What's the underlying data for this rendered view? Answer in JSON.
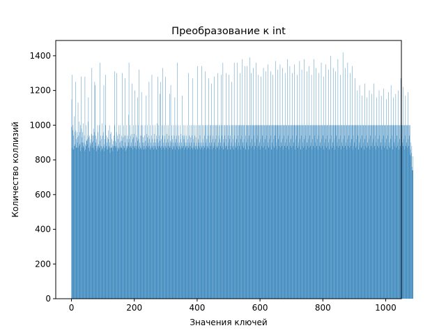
{
  "chart_data": {
    "type": "bar",
    "title": "Преобразование к int",
    "xlabel": "Значения ключей",
    "ylabel": "Количество коллизий",
    "xlim": [
      -50,
      1050
    ],
    "ylim": [
      0,
      1488
    ],
    "xticks": [
      0,
      200,
      400,
      600,
      800,
      1000
    ],
    "yticks": [
      0,
      200,
      400,
      600,
      800,
      1000,
      1200,
      1400
    ],
    "grid": false,
    "legend": "none",
    "bar_color": "#1f77b4",
    "bar_width": 1.0,
    "x_start": 0,
    "x_end": 999,
    "x_step": 1,
    "values": [
      990,
      1150,
      1290,
      870,
      970,
      1000,
      860,
      940,
      880,
      1050,
      960,
      880,
      890,
      1250,
      970,
      920,
      870,
      960,
      870,
      900,
      930,
      1130,
      870,
      940,
      880,
      1020,
      960,
      890,
      850,
      1000,
      900,
      1280,
      980,
      930,
      870,
      900,
      960,
      1010,
      880,
      870,
      900,
      940,
      850,
      1280,
      890,
      860,
      880,
      1000,
      910,
      910,
      920,
      890,
      940,
      1020,
      1160,
      930,
      870,
      940,
      850,
      900,
      880,
      920,
      890,
      870,
      950,
      1330,
      900,
      940,
      870,
      910,
      980,
      940,
      860,
      960,
      1250,
      880,
      1230,
      900,
      940,
      850,
      920,
      870,
      880,
      1000,
      860,
      960,
      880,
      890,
      870,
      1000,
      910,
      1360,
      880,
      940,
      850,
      880,
      920,
      1010,
      860,
      870,
      940,
      880,
      960,
      1230,
      890,
      850,
      920,
      870,
      1000,
      1290,
      880,
      940,
      860,
      900,
      880,
      930,
      860,
      920,
      970,
      880,
      870,
      1000,
      900,
      840,
      950,
      870,
      960,
      870,
      870,
      920,
      890,
      850,
      880,
      910,
      870,
      940,
      880,
      1000,
      1310,
      880,
      910,
      870,
      900,
      960,
      1300,
      880,
      940,
      850,
      870,
      920,
      1000,
      860,
      950,
      870,
      900,
      880,
      1000,
      910,
      870,
      940,
      870,
      910,
      1300,
      860,
      930,
      880,
      1000,
      880,
      940,
      870,
      1270,
      900,
      850,
      940,
      880,
      860,
      1000,
      920,
      870,
      940,
      880,
      900,
      1060,
      1360,
      880,
      920,
      1000,
      870,
      940,
      880,
      900,
      870,
      950,
      1240,
      880,
      920,
      860,
      1000,
      930,
      880,
      950,
      870,
      1200,
      900,
      880,
      1000,
      940,
      860,
      930,
      880,
      1160,
      910,
      1000,
      870,
      920,
      1320,
      860,
      900,
      880,
      940,
      870,
      1000,
      860,
      1190,
      940,
      870,
      900,
      1000,
      880,
      930,
      860,
      900,
      940,
      880,
      1000,
      870,
      910,
      860,
      1170,
      950,
      880,
      930,
      1000,
      870,
      900,
      880,
      940,
      1250,
      880,
      920,
      860,
      1000,
      900,
      870,
      940,
      880,
      1290,
      920,
      870,
      880,
      1000,
      900,
      860,
      950,
      880,
      920,
      1000,
      870,
      900,
      880,
      940,
      860,
      1010,
      920,
      880,
      1280,
      900,
      870,
      1000,
      940,
      880,
      910,
      1180,
      870,
      1250,
      880,
      920,
      860,
      1000,
      880,
      1330,
      940,
      870,
      900,
      880,
      1000,
      920,
      860,
      940,
      1280,
      880,
      900,
      870,
      1000,
      950,
      880,
      920,
      860,
      1000,
      900,
      880,
      940,
      870,
      1180,
      910,
      880,
      1230,
      900,
      870,
      940,
      1000,
      860,
      920,
      880,
      900,
      1000,
      870,
      940,
      880,
      1160,
      860,
      900,
      1000,
      920,
      880,
      940,
      870,
      1360,
      900,
      880,
      1000,
      860,
      940,
      880,
      900,
      870,
      1000,
      920,
      860,
      950,
      880,
      900,
      1170,
      870,
      940,
      880,
      1000,
      880,
      920,
      860,
      940,
      900,
      1000,
      880,
      870,
      940,
      880,
      900,
      1000,
      860,
      920,
      880,
      1300,
      870,
      940,
      900,
      1000,
      880,
      860,
      930,
      880,
      1000,
      900,
      870,
      940,
      1270,
      860,
      1000,
      920,
      880,
      900,
      870,
      940,
      1000,
      880,
      860,
      930,
      1000,
      900,
      880,
      870,
      1340,
      860,
      1000,
      920,
      880,
      900,
      870,
      1000,
      940,
      860,
      1000,
      880,
      900,
      870,
      1340,
      880,
      1000,
      920,
      860,
      900,
      1000,
      880,
      870,
      940,
      1000,
      1310,
      880,
      900,
      1000,
      860,
      920,
      880,
      1000,
      870,
      940,
      1000,
      1270,
      880,
      900,
      860,
      1000,
      940,
      880,
      1000,
      1240,
      900,
      860,
      1000,
      920,
      880,
      940,
      1000,
      870,
      1280,
      900,
      1000,
      880,
      920,
      860,
      1000,
      940,
      1000,
      880,
      870,
      1300,
      1000,
      900,
      880,
      940,
      1000,
      860,
      920,
      1000,
      880,
      900,
      1000,
      1290,
      870,
      940,
      1000,
      880,
      1360,
      920,
      860,
      1000,
      900,
      1000,
      940,
      880,
      870,
      1000,
      1300,
      920,
      1000,
      880,
      860,
      1000,
      940,
      900,
      1000,
      1290,
      880,
      920,
      1000,
      860,
      940,
      1000,
      880,
      900,
      1250,
      1000,
      870,
      1000,
      920,
      880,
      1000,
      860,
      1360,
      940,
      1000,
      880,
      900,
      1000,
      870,
      920,
      1000,
      1360,
      880,
      1000,
      940,
      860,
      1000,
      900,
      1000,
      880,
      1300,
      1000,
      920,
      860,
      1000,
      940,
      1000,
      880,
      1380,
      1000,
      900,
      870,
      1000,
      920,
      1000,
      880,
      1340,
      1000,
      940,
      860,
      1000,
      900,
      1000,
      1340,
      880,
      1000,
      920,
      1000,
      860,
      1000,
      940,
      1390,
      880,
      1000,
      900,
      1000,
      1300,
      870,
      1000,
      920,
      1000,
      880,
      1000,
      1330,
      940,
      1000,
      860,
      1000,
      900,
      1000,
      880,
      1360,
      1000,
      920,
      1000,
      870,
      1000,
      940,
      1000,
      1290,
      880,
      1000,
      900,
      1000,
      860,
      1000,
      920,
      1280,
      1000,
      880,
      1000,
      940,
      1000,
      870,
      1000,
      1330,
      900,
      1000,
      880,
      1000,
      920,
      1000,
      1310,
      860,
      1000,
      940,
      1000,
      880,
      1000,
      900,
      1350,
      1000,
      870,
      1000,
      920,
      1000,
      880,
      1000,
      1310,
      940,
      1000,
      860,
      1000,
      900,
      1000,
      1290,
      880,
      1000,
      920,
      1000,
      870,
      1000,
      940,
      1370,
      1000,
      880,
      1000,
      900,
      1000,
      860,
      1000,
      1320,
      920,
      1000,
      880,
      1000,
      940,
      1000,
      1350,
      870,
      1000,
      900,
      1000,
      880,
      1000,
      920,
      1330,
      1000,
      860,
      1000,
      940,
      1000,
      880,
      1000,
      1300,
      900,
      1000,
      870,
      1000,
      920,
      1000,
      1380,
      880,
      1000,
      940,
      1000,
      860,
      1000,
      900,
      1340,
      1000,
      880,
      1000,
      920,
      1000,
      870,
      1000,
      1300,
      940,
      1000,
      880,
      1000,
      900,
      1000,
      1350,
      860,
      1000,
      920,
      1000,
      880,
      1000,
      940,
      1290,
      1000,
      870,
      1000,
      900,
      1000,
      880,
      1000,
      1370,
      920,
      1000,
      860,
      1000,
      940,
      1000,
      1320,
      880,
      1000,
      900,
      1000,
      870,
      1000,
      920,
      1380,
      1000,
      880,
      1000,
      940,
      1000,
      860,
      1000,
      1310,
      900,
      1000,
      880,
      1000,
      920,
      1000,
      1340,
      870,
      1000,
      940,
      1000,
      880,
      1000,
      900,
      1290,
      1000,
      860,
      1000,
      920,
      1000,
      880,
      1000,
      1380,
      940,
      1000,
      870,
      1000,
      900,
      1000,
      1330,
      880,
      1000,
      920,
      1000,
      860,
      1000,
      940,
      1300,
      1000,
      880,
      1000,
      900,
      1000,
      870,
      1000,
      1360,
      920,
      1000,
      880,
      1000,
      940,
      1000,
      1280,
      860,
      1000,
      900,
      1000,
      880,
      1000,
      920,
      1350,
      1000,
      870,
      1000,
      940,
      1000,
      880,
      1000,
      1320,
      900,
      1000,
      860,
      1000,
      920,
      1000,
      1400,
      880,
      1000,
      940,
      1000,
      870,
      1000,
      900,
      1330,
      1000,
      880,
      1000,
      920,
      1000,
      860,
      1000,
      1310,
      940,
      1000,
      880,
      1000,
      900,
      1000,
      1380,
      870,
      1000,
      920,
      1000,
      880,
      1000,
      940,
      1290,
      1000,
      860,
      1000,
      900,
      1000,
      880,
      1000,
      1420,
      920,
      1000,
      870,
      1000,
      940,
      1000,
      1330,
      880,
      1000,
      900,
      1000,
      860,
      1000,
      920,
      1360,
      1000,
      880,
      1000,
      940,
      1000,
      870,
      1000,
      1300,
      900,
      1000,
      880,
      1000,
      920,
      1000,
      1340,
      860,
      1000,
      940,
      1000,
      880,
      1000,
      900,
      1270,
      1000,
      870,
      1000,
      920,
      1000,
      880,
      1000,
      1200,
      940,
      1000,
      860,
      1000,
      900,
      1000,
      1230,
      880,
      1000,
      920,
      1000,
      870,
      1000,
      940,
      1170,
      1000,
      880,
      1000,
      900,
      1000,
      860,
      1000,
      1240,
      920,
      1000,
      880,
      1000,
      940,
      1000,
      1160,
      870,
      1000,
      900,
      1000,
      880,
      1000,
      920,
      1200,
      1000,
      860,
      1000,
      940,
      1000,
      880,
      1000,
      1180,
      900,
      1000,
      870,
      1000,
      920,
      1000,
      1240,
      880,
      1000,
      940,
      1000,
      860,
      1000,
      900,
      1160,
      1000,
      880,
      1000,
      920,
      1000,
      870,
      1000,
      1200,
      940,
      1000,
      880,
      1000,
      900,
      1000,
      1170,
      860,
      1000,
      920,
      1000,
      880,
      1000,
      940,
      1210,
      1000,
      870,
      1000,
      900,
      1000,
      880,
      1000,
      1150,
      920,
      1000,
      860,
      1000,
      940,
      1000,
      1190,
      880,
      1000,
      900,
      1000,
      870,
      1000,
      920,
      1230,
      1000,
      880,
      1000,
      940,
      1000,
      860,
      1000,
      1160,
      900,
      1000,
      880,
      1000,
      920,
      1000,
      1180,
      870,
      1000,
      940,
      1000,
      880,
      1000,
      900,
      1200,
      1000,
      860,
      1000,
      920,
      1000,
      880,
      1000,
      1270,
      940,
      1000,
      870,
      1000,
      900,
      1000,
      1220,
      880,
      1000,
      920,
      1000,
      860,
      1000,
      940,
      1170,
      1000,
      880,
      1000,
      900,
      1000,
      870,
      1000,
      1190,
      920,
      1000,
      880,
      1000,
      940,
      1000,
      830,
      860,
      900,
      820,
      840,
      880,
      760,
      740,
      820,
      740
    ]
  }
}
